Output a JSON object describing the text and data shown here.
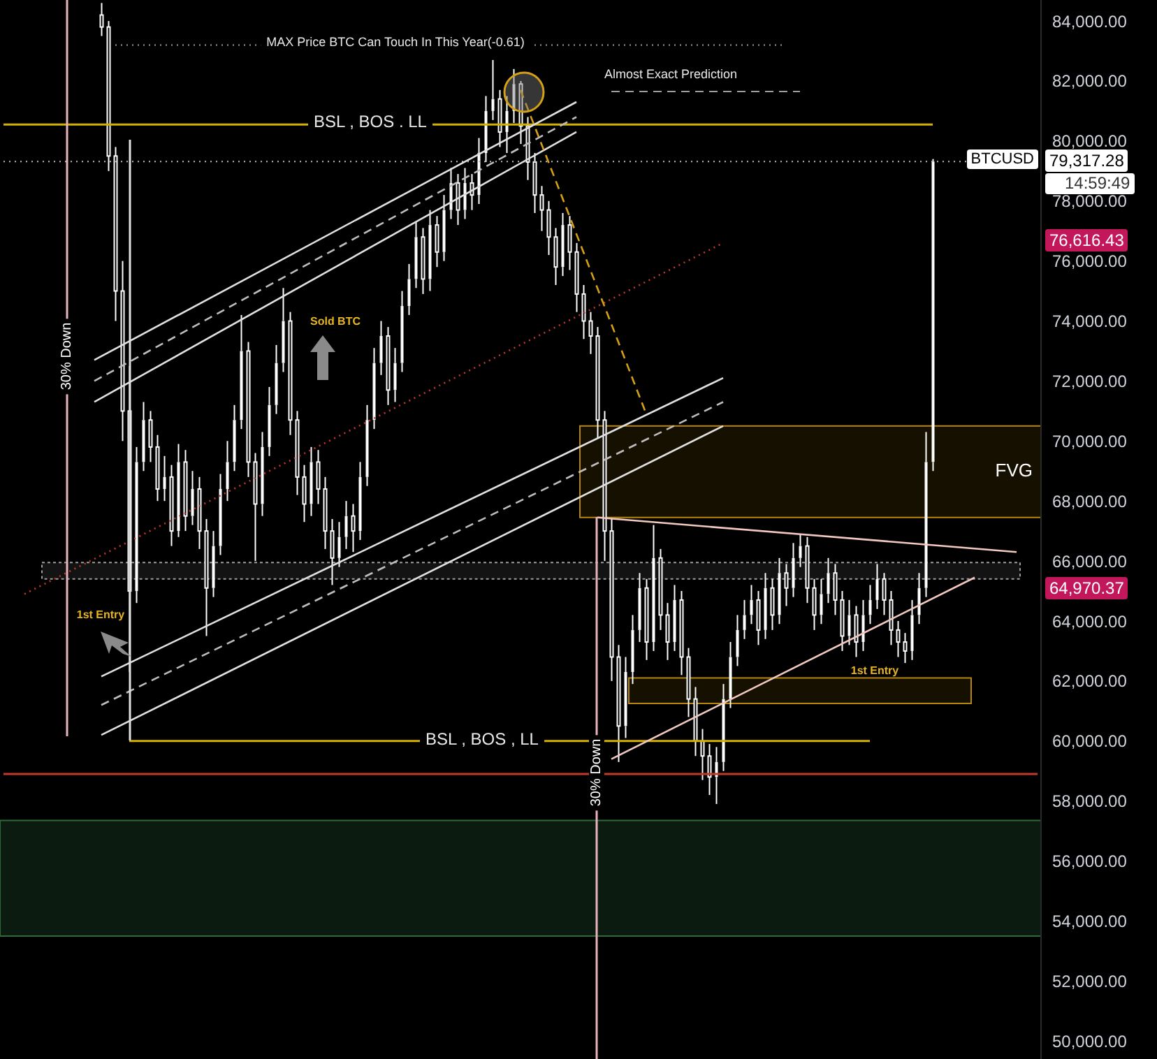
{
  "chart_data": {
    "type": "candlestick",
    "color": "#ffffff",
    "categories": [
      null,
      null,
      null,
      null,
      null,
      null,
      null,
      null,
      null,
      null,
      null,
      null,
      null,
      null,
      null,
      null,
      null,
      null,
      null,
      null,
      null,
      null,
      null,
      null,
      null,
      null,
      null,
      null,
      null,
      null,
      null,
      null,
      null,
      null,
      null,
      null,
      null,
      null,
      null,
      null,
      null,
      null,
      null,
      null,
      null,
      null,
      null,
      null,
      null,
      null,
      null,
      null,
      null,
      null,
      null,
      null,
      null,
      null,
      null,
      null,
      null,
      null,
      null,
      null,
      null,
      null,
      null,
      null,
      null,
      null,
      null,
      null,
      null,
      null,
      null,
      null,
      null,
      null,
      null,
      null,
      null,
      null,
      null,
      null,
      null,
      null,
      null,
      null,
      null,
      null,
      null,
      null,
      null,
      null,
      null,
      null,
      null,
      null,
      null,
      null,
      null,
      null,
      null,
      null,
      null,
      null,
      null,
      null,
      null,
      null,
      null,
      null,
      null,
      null,
      null,
      null,
      null,
      null,
      null,
      null,
      null,
      null,
      null,
      null,
      null,
      null,
      null,
      null,
      null,
      null,
      null,
      null,
      null,
      null,
      null,
      null,
      null,
      null,
      null,
      null,
      null,
      null,
      null,
      null,
      null,
      null,
      null,
      null,
      null
    ],
    "ohlc": [
      null,
      null,
      null,
      null,
      null,
      null,
      null,
      null,
      null,
      null,
      null,
      null,
      null,
      null,
      [
        84200,
        84600,
        83500,
        83800
      ],
      [
        83800,
        84000,
        79000,
        79500
      ],
      [
        79500,
        79800,
        74000,
        75000
      ],
      [
        75000,
        76000,
        70000,
        71000
      ],
      [
        71000,
        72500,
        62300,
        65000
      ],
      [
        65000,
        69800,
        64600,
        69300
      ],
      [
        69300,
        71300,
        69000,
        70700
      ],
      [
        70700,
        71000,
        69300,
        69800
      ],
      [
        69800,
        70200,
        68000,
        68400
      ],
      [
        68400,
        69500,
        68000,
        68800
      ],
      [
        68800,
        69200,
        66500,
        67000
      ],
      [
        67000,
        69900,
        66800,
        69300
      ],
      [
        69300,
        69700,
        67000,
        67500
      ],
      [
        67500,
        69000,
        67200,
        68400
      ],
      [
        68400,
        68800,
        66400,
        67000
      ],
      [
        67000,
        67400,
        63500,
        65100
      ],
      [
        65100,
        67000,
        64800,
        66500
      ],
      [
        66500,
        68900,
        66200,
        68400
      ],
      [
        68400,
        70000,
        68000,
        69300
      ],
      [
        69300,
        71200,
        69000,
        70700
      ],
      [
        70700,
        74200,
        70400,
        73000
      ],
      [
        73000,
        73300,
        68800,
        69300
      ],
      [
        69300,
        69600,
        66000,
        67900
      ],
      [
        67900,
        70300,
        67500,
        69800
      ],
      [
        69800,
        71800,
        69500,
        71200
      ],
      [
        71200,
        73200,
        70900,
        72600
      ],
      [
        72600,
        75100,
        72300,
        74000
      ],
      [
        74000,
        74300,
        70200,
        70700
      ],
      [
        70700,
        71000,
        68200,
        68800
      ],
      [
        68800,
        69200,
        67300,
        67900
      ],
      [
        67900,
        69800,
        67500,
        69300
      ],
      [
        69300,
        69700,
        67900,
        68400
      ],
      [
        68400,
        68800,
        66400,
        67000
      ],
      [
        67000,
        67400,
        65200,
        66100
      ],
      [
        66100,
        67300,
        65800,
        66800
      ],
      [
        66800,
        68000,
        66400,
        67500
      ],
      [
        67500,
        67900,
        66300,
        67000
      ],
      [
        67000,
        69300,
        66700,
        68800
      ],
      [
        68800,
        71200,
        68500,
        70700
      ],
      [
        70700,
        73100,
        70400,
        72600
      ],
      [
        72600,
        74000,
        72200,
        73500
      ],
      [
        73500,
        73800,
        71200,
        71700
      ],
      [
        71700,
        73100,
        71300,
        72600
      ],
      [
        72600,
        75000,
        72300,
        74500
      ],
      [
        74500,
        75900,
        74200,
        75400
      ],
      [
        75400,
        77300,
        75100,
        76800
      ],
      [
        76800,
        77100,
        74900,
        75400
      ],
      [
        75400,
        77700,
        75000,
        77200
      ],
      [
        77200,
        77500,
        75800,
        76300
      ],
      [
        76300,
        78200,
        76000,
        77700
      ],
      [
        77700,
        79100,
        77400,
        78600
      ],
      [
        78600,
        78900,
        77200,
        77700
      ],
      [
        77700,
        79100,
        77400,
        78600
      ],
      [
        78600,
        78900,
        77700,
        78200
      ],
      [
        78200,
        80100,
        77900,
        79600
      ],
      [
        79600,
        81500,
        79300,
        81000
      ],
      [
        81000,
        82700,
        80700,
        81400
      ],
      [
        81400,
        81700,
        79800,
        80300
      ],
      [
        80300,
        81500,
        79600,
        81000
      ],
      [
        81000,
        82400,
        80600,
        81900
      ],
      [
        81900,
        82000,
        79900,
        80500
      ],
      [
        80500,
        80800,
        78700,
        79300
      ],
      [
        79300,
        79600,
        77600,
        78200
      ],
      [
        78200,
        78500,
        77000,
        77700
      ],
      [
        77700,
        78000,
        76200,
        76800
      ],
      [
        76800,
        77100,
        75200,
        75800
      ],
      [
        75800,
        77600,
        75500,
        77200
      ],
      [
        77200,
        77500,
        75700,
        76300
      ],
      [
        76300,
        76600,
        74300,
        74900
      ],
      [
        74900,
        75200,
        73400,
        74000
      ],
      [
        74000,
        74300,
        72900,
        73500
      ],
      [
        73500,
        73800,
        70100,
        70700
      ],
      [
        70700,
        71000,
        66000,
        67000
      ],
      [
        67000,
        67400,
        62000,
        62800
      ],
      [
        62800,
        63200,
        59300,
        60500
      ],
      [
        60500,
        62800,
        60100,
        62300
      ],
      [
        62300,
        64200,
        61900,
        63700
      ],
      [
        63700,
        65600,
        63300,
        65100
      ],
      [
        65100,
        65400,
        62700,
        63300
      ],
      [
        63300,
        67200,
        63000,
        66100
      ],
      [
        66100,
        66400,
        63700,
        64200
      ],
      [
        64200,
        64600,
        62700,
        63300
      ],
      [
        63300,
        65200,
        63000,
        64700
      ],
      [
        64700,
        65000,
        62200,
        62800
      ],
      [
        62800,
        63100,
        60800,
        61400
      ],
      [
        61400,
        61800,
        59500,
        60000
      ],
      [
        60000,
        60400,
        58700,
        59500
      ],
      [
        59500,
        59900,
        58200,
        58800
      ],
      [
        58800,
        59800,
        57900,
        59300
      ],
      [
        59300,
        61900,
        59000,
        61400
      ],
      [
        61400,
        63300,
        61100,
        62800
      ],
      [
        62800,
        64200,
        62500,
        63700
      ],
      [
        63700,
        64700,
        63400,
        64200
      ],
      [
        64200,
        65200,
        63900,
        64700
      ],
      [
        64700,
        65000,
        63200,
        63700
      ],
      [
        63700,
        65600,
        63400,
        65100
      ],
      [
        65100,
        65400,
        63700,
        64200
      ],
      [
        64200,
        66100,
        63900,
        65600
      ],
      [
        65600,
        65900,
        64500,
        65100
      ],
      [
        65100,
        66600,
        64800,
        66100
      ],
      [
        66100,
        66900,
        65800,
        66500
      ],
      [
        66500,
        66800,
        64600,
        65100
      ],
      [
        65100,
        65400,
        63700,
        64200
      ],
      [
        64200,
        65400,
        63900,
        64900
      ],
      [
        64900,
        66100,
        64600,
        65600
      ],
      [
        65600,
        65900,
        64200,
        64700
      ],
      [
        64700,
        65000,
        63000,
        63500
      ],
      [
        63500,
        64700,
        63200,
        64200
      ],
      [
        64200,
        64500,
        62800,
        63300
      ],
      [
        63300,
        64700,
        63000,
        64200
      ],
      [
        64200,
        65200,
        63900,
        64700
      ],
      [
        64700,
        65900,
        64400,
        65400
      ],
      [
        65400,
        65600,
        64200,
        64700
      ],
      [
        64700,
        65000,
        63200,
        63700
      ],
      [
        63700,
        64000,
        62800,
        63300
      ],
      [
        63300,
        63600,
        62600,
        63000
      ],
      [
        63000,
        64700,
        62700,
        64200
      ],
      [
        64200,
        65600,
        63900,
        65100
      ],
      [
        65100,
        70300,
        64800,
        69300
      ],
      [
        69300,
        79400,
        69000,
        79317.28
      ],
      null,
      null,
      null,
      null,
      null,
      null,
      null,
      null,
      null,
      null,
      null,
      null,
      null,
      null,
      null
    ],
    "series": [
      {
        "type": "line",
        "color": "#e0e0e0",
        "line_style": "solid",
        "values": [
          null,
          null,
          null,
          null,
          null,
          null,
          null,
          null,
          null,
          null,
          null,
          null,
          null,
          72700,
          null,
          null,
          null,
          null,
          null,
          null,
          null,
          null,
          null,
          null,
          null,
          null,
          null,
          null,
          null,
          null,
          null,
          null,
          null,
          null,
          null,
          null,
          null,
          null,
          null,
          null,
          null,
          null,
          null,
          null,
          null,
          null,
          null,
          null,
          null,
          null,
          null,
          null,
          null,
          null,
          null,
          null,
          null,
          null,
          null,
          null,
          null,
          null,
          null,
          null,
          null,
          null,
          null,
          null,
          null,
          null,
          null,
          null,
          null,
          null,
          null,
          null,
          null,
          null,
          null,
          null,
          null,
          null,
          81300,
          null,
          null,
          null,
          null,
          null,
          null,
          null,
          null,
          null,
          null,
          null,
          null,
          null,
          null,
          null,
          null,
          null,
          null,
          null,
          null,
          null,
          null,
          null,
          null,
          null,
          null,
          null,
          null,
          null,
          null,
          null,
          null,
          null,
          null,
          null,
          null,
          null,
          null,
          null,
          null,
          null,
          null,
          null,
          null,
          null,
          null,
          null,
          null,
          null,
          null,
          null,
          null,
          null,
          null,
          null,
          null,
          null,
          null,
          null,
          null,
          null,
          null,
          null,
          null,
          null,
          null
        ]
      },
      {
        "type": "line",
        "color": "#bdbdbd",
        "line_style": "dashed",
        "values": [
          null,
          null,
          null,
          null,
          null,
          null,
          null,
          null,
          null,
          null,
          null,
          null,
          null,
          72000,
          null,
          null,
          null,
          null,
          null,
          null,
          null,
          null,
          null,
          null,
          null,
          null,
          null,
          null,
          null,
          null,
          null,
          null,
          null,
          null,
          null,
          null,
          null,
          null,
          null,
          null,
          null,
          null,
          null,
          null,
          null,
          null,
          null,
          null,
          null,
          null,
          null,
          null,
          null,
          null,
          null,
          null,
          null,
          null,
          null,
          null,
          null,
          null,
          null,
          null,
          null,
          null,
          null,
          null,
          null,
          null,
          null,
          null,
          null,
          null,
          null,
          null,
          null,
          null,
          null,
          null,
          null,
          null,
          80800,
          null,
          null,
          null,
          null,
          null,
          null,
          null,
          null,
          null,
          null,
          null,
          null,
          null,
          null,
          null,
          null,
          null,
          null,
          null,
          null,
          null,
          null,
          null,
          null,
          null,
          null,
          null,
          null,
          null,
          null,
          null,
          null,
          null,
          null,
          null,
          null,
          null,
          null,
          null,
          null,
          null,
          null,
          null,
          null,
          null,
          null,
          null,
          null,
          null,
          null,
          null,
          null,
          null,
          null,
          null,
          null,
          null,
          null,
          null,
          null,
          null,
          null,
          null,
          null,
          null,
          null
        ]
      },
      {
        "type": "line",
        "color": "#e0e0e0",
        "line_style": "solid",
        "values": [
          null,
          null,
          null,
          null,
          null,
          null,
          null,
          null,
          null,
          null,
          null,
          null,
          null,
          71300,
          null,
          null,
          null,
          null,
          null,
          null,
          null,
          null,
          null,
          null,
          null,
          null,
          null,
          null,
          null,
          null,
          null,
          null,
          null,
          null,
          null,
          null,
          null,
          null,
          null,
          null,
          null,
          null,
          null,
          null,
          null,
          null,
          null,
          null,
          null,
          null,
          null,
          null,
          null,
          null,
          null,
          null,
          null,
          null,
          null,
          null,
          null,
          null,
          null,
          null,
          null,
          null,
          null,
          null,
          null,
          null,
          null,
          null,
          null,
          null,
          null,
          null,
          null,
          null,
          null,
          null,
          null,
          null,
          80300,
          null,
          null,
          null,
          null,
          null,
          null,
          null,
          null,
          null,
          null,
          null,
          null,
          null,
          null,
          null,
          null,
          null,
          null,
          null,
          null,
          null,
          null,
          null,
          null,
          null,
          null,
          null,
          null,
          null,
          null,
          null,
          null,
          null,
          null,
          null,
          null,
          null,
          null,
          null,
          null,
          null,
          null,
          null,
          null,
          null,
          null,
          null,
          null,
          null,
          null,
          null,
          null,
          null,
          null,
          null,
          null,
          null,
          null,
          null,
          null,
          null,
          null,
          null,
          null,
          null,
          null
        ]
      },
      {
        "type": "line",
        "color": "#e0e0e0",
        "line_style": "solid",
        "values": [
          null,
          null,
          null,
          null,
          null,
          null,
          null,
          null,
          null,
          null,
          null,
          null,
          null,
          null,
          62150,
          null,
          null,
          null,
          null,
          null,
          null,
          null,
          null,
          null,
          null,
          null,
          null,
          null,
          null,
          null,
          null,
          null,
          null,
          null,
          null,
          null,
          null,
          null,
          null,
          null,
          null,
          null,
          null,
          null,
          null,
          null,
          null,
          null,
          null,
          null,
          null,
          null,
          null,
          null,
          null,
          null,
          null,
          null,
          null,
          null,
          null,
          null,
          null,
          null,
          null,
          null,
          null,
          null,
          null,
          null,
          null,
          null,
          null,
          null,
          null,
          null,
          null,
          null,
          null,
          null,
          null,
          null,
          null,
          null,
          null,
          null,
          null,
          null,
          null,
          null,
          null,
          null,
          null,
          null,
          null,
          null,
          null,
          null,
          null,
          null,
          null,
          null,
          null,
          72100,
          null,
          null,
          null,
          null,
          null,
          null,
          null,
          null,
          null,
          null,
          null,
          null,
          null,
          null,
          null,
          null,
          null,
          null,
          null,
          null,
          null,
          null,
          null,
          null,
          null,
          null,
          null,
          null,
          null,
          null,
          null,
          null,
          null,
          null,
          null,
          null,
          null,
          null,
          null,
          null,
          null,
          null,
          null,
          null,
          null
        ]
      },
      {
        "type": "line",
        "color": "#bdbdbd",
        "line_style": "dashed",
        "values": [
          null,
          null,
          null,
          null,
          null,
          null,
          null,
          null,
          null,
          null,
          null,
          null,
          null,
          null,
          61200,
          null,
          null,
          null,
          null,
          null,
          null,
          null,
          null,
          null,
          null,
          null,
          null,
          null,
          null,
          null,
          null,
          null,
          null,
          null,
          null,
          null,
          null,
          null,
          null,
          null,
          null,
          null,
          null,
          null,
          null,
          null,
          null,
          null,
          null,
          null,
          null,
          null,
          null,
          null,
          null,
          null,
          null,
          null,
          null,
          null,
          null,
          null,
          null,
          null,
          null,
          null,
          null,
          null,
          null,
          null,
          null,
          null,
          null,
          null,
          null,
          null,
          null,
          null,
          null,
          null,
          null,
          null,
          null,
          null,
          null,
          null,
          null,
          null,
          null,
          null,
          null,
          null,
          null,
          null,
          null,
          null,
          null,
          null,
          null,
          null,
          null,
          null,
          null,
          71300,
          null,
          null,
          null,
          null,
          null,
          null,
          null,
          null,
          null,
          null,
          null,
          null,
          null,
          null,
          null,
          null,
          null,
          null,
          null,
          null,
          null,
          null,
          null,
          null,
          null,
          null,
          null,
          null,
          null,
          null,
          null,
          null,
          null,
          null,
          null,
          null,
          null,
          null,
          null,
          null,
          null,
          null,
          null,
          null,
          null
        ]
      },
      {
        "type": "line",
        "color": "#e0e0e0",
        "line_style": "solid",
        "values": [
          null,
          null,
          null,
          null,
          null,
          null,
          null,
          null,
          null,
          null,
          null,
          null,
          null,
          null,
          60200,
          null,
          null,
          null,
          null,
          null,
          null,
          null,
          null,
          null,
          null,
          null,
          null,
          null,
          null,
          null,
          null,
          null,
          null,
          null,
          null,
          null,
          null,
          null,
          null,
          null,
          null,
          null,
          null,
          null,
          null,
          null,
          null,
          null,
          null,
          null,
          null,
          null,
          null,
          null,
          null,
          null,
          null,
          null,
          null,
          null,
          null,
          null,
          null,
          null,
          null,
          null,
          null,
          null,
          null,
          null,
          null,
          null,
          null,
          null,
          null,
          null,
          null,
          null,
          null,
          null,
          null,
          null,
          null,
          null,
          null,
          null,
          null,
          null,
          null,
          null,
          null,
          null,
          null,
          null,
          null,
          null,
          null,
          null,
          null,
          null,
          null,
          null,
          null,
          70500,
          null,
          null,
          null,
          null,
          null,
          null,
          null,
          null,
          null,
          null,
          null,
          null,
          null,
          null,
          null,
          null,
          null,
          null,
          null,
          null,
          null,
          null,
          null,
          null,
          null,
          null,
          null,
          null,
          null,
          null,
          null,
          null,
          null,
          null,
          null,
          null,
          null,
          null,
          null,
          null,
          null,
          null,
          null,
          null,
          null
        ]
      },
      {
        "type": "line",
        "color": "#c0392b",
        "line_style": "dotted",
        "values": [
          null,
          null,
          null,
          64900,
          null,
          null,
          null,
          null,
          null,
          null,
          null,
          null,
          null,
          null,
          null,
          null,
          null,
          null,
          null,
          null,
          null,
          null,
          null,
          null,
          null,
          null,
          null,
          null,
          null,
          null,
          null,
          null,
          null,
          null,
          null,
          null,
          null,
          null,
          null,
          null,
          null,
          null,
          null,
          null,
          null,
          null,
          null,
          null,
          null,
          null,
          null,
          null,
          null,
          null,
          null,
          null,
          null,
          null,
          null,
          null,
          null,
          null,
          null,
          null,
          null,
          null,
          null,
          null,
          null,
          null,
          null,
          null,
          null,
          null,
          null,
          null,
          null,
          null,
          null,
          null,
          null,
          null,
          null,
          null,
          null,
          null,
          null,
          null,
          null,
          null,
          null,
          null,
          null,
          null,
          null,
          null,
          null,
          null,
          null,
          null,
          null,
          null,
          null,
          76600,
          null,
          null,
          null,
          null,
          null,
          null,
          null,
          null,
          null,
          null,
          null,
          null,
          null,
          null,
          null,
          null,
          null,
          null,
          null,
          null,
          null,
          null,
          null,
          null,
          null,
          null,
          null,
          null,
          null,
          null,
          null,
          null,
          null,
          null,
          null,
          null,
          null,
          null,
          null,
          null,
          null,
          null,
          null,
          null,
          null
        ]
      },
      {
        "type": "line",
        "color": "#d4a017",
        "line_style": "dashed",
        "values": [
          null,
          null,
          null,
          null,
          null,
          null,
          null,
          null,
          null,
          null,
          null,
          null,
          null,
          null,
          null,
          null,
          null,
          null,
          null,
          null,
          null,
          null,
          null,
          null,
          null,
          null,
          null,
          null,
          null,
          null,
          null,
          null,
          null,
          null,
          null,
          null,
          null,
          null,
          null,
          null,
          null,
          null,
          null,
          null,
          null,
          null,
          null,
          null,
          null,
          null,
          null,
          null,
          null,
          null,
          null,
          null,
          null,
          null,
          null,
          null,
          null,
          null,
          null,
          null,
          null,
          null,
          null,
          null,
          null,
          null,
          null,
          null,
          null,
          null,
          81700,
          null,
          null,
          null,
          null,
          null,
          null,
          null,
          null,
          null,
          null,
          null,
          null,
          null,
          null,
          null,
          null,
          null,
          70900,
          null,
          null,
          null,
          null,
          null,
          null,
          null,
          null,
          null,
          null,
          null,
          null,
          null,
          null,
          null,
          null,
          null,
          null,
          null,
          null,
          null,
          null,
          null,
          null,
          null,
          null,
          null,
          null,
          null,
          null,
          null,
          null,
          null,
          null,
          null,
          null,
          null,
          null,
          null,
          null,
          null,
          null,
          null,
          null,
          null,
          null,
          null,
          null,
          null,
          null,
          null,
          null,
          null,
          null,
          null,
          null
        ]
      },
      {
        "type": "line",
        "color": "#f2c9c0",
        "line_style": "solid",
        "values": [
          null,
          null,
          null,
          null,
          null,
          null,
          null,
          null,
          null,
          null,
          null,
          null,
          null,
          null,
          null,
          null,
          null,
          null,
          null,
          null,
          null,
          null,
          null,
          null,
          null,
          null,
          null,
          null,
          null,
          null,
          null,
          null,
          null,
          null,
          null,
          null,
          null,
          null,
          null,
          null,
          null,
          null,
          null,
          null,
          null,
          null,
          null,
          null,
          null,
          null,
          null,
          null,
          null,
          null,
          null,
          null,
          null,
          null,
          null,
          null,
          null,
          null,
          null,
          null,
          null,
          null,
          null,
          null,
          null,
          null,
          null,
          null,
          null,
          null,
          null,
          null,
          null,
          null,
          null,
          null,
          null,
          null,
          null,
          null,
          null,
          67450,
          null,
          null,
          null,
          null,
          null,
          null,
          null,
          null,
          null,
          null,
          null,
          null,
          null,
          null,
          null,
          null,
          null,
          null,
          null,
          null,
          null,
          null,
          null,
          null,
          null,
          null,
          null,
          null,
          null,
          null,
          null,
          null,
          null,
          null,
          null,
          null,
          null,
          null,
          null,
          null,
          null,
          null,
          null,
          null,
          null,
          null,
          null,
          null,
          null,
          null,
          null,
          null,
          null,
          null,
          null,
          null,
          null,
          null,
          null,
          66300,
          null,
          null,
          null
        ]
      },
      {
        "type": "line",
        "color": "#f2c9c0",
        "line_style": "solid",
        "values": [
          null,
          null,
          null,
          null,
          null,
          null,
          null,
          null,
          null,
          null,
          null,
          null,
          null,
          null,
          null,
          null,
          null,
          null,
          null,
          null,
          null,
          null,
          null,
          null,
          null,
          null,
          null,
          null,
          null,
          null,
          null,
          null,
          null,
          null,
          null,
          null,
          null,
          null,
          null,
          null,
          null,
          null,
          null,
          null,
          null,
          null,
          null,
          null,
          null,
          null,
          null,
          null,
          null,
          null,
          null,
          null,
          null,
          null,
          null,
          null,
          null,
          null,
          null,
          null,
          null,
          null,
          null,
          null,
          null,
          null,
          null,
          null,
          null,
          null,
          null,
          null,
          null,
          null,
          null,
          null,
          null,
          null,
          null,
          null,
          null,
          null,
          null,
          59400,
          null,
          null,
          null,
          null,
          null,
          null,
          null,
          null,
          null,
          null,
          null,
          null,
          null,
          null,
          null,
          null,
          null,
          null,
          null,
          null,
          null,
          null,
          null,
          null,
          null,
          null,
          null,
          null,
          null,
          null,
          null,
          null,
          null,
          null,
          null,
          null,
          null,
          null,
          null,
          null,
          null,
          null,
          null,
          null,
          null,
          null,
          null,
          null,
          null,
          null,
          null,
          65450,
          null,
          null,
          null,
          null,
          null,
          null,
          null,
          null,
          null
        ]
      }
    ],
    "ylim": [
      49400,
      84700
    ],
    "yticks": [
      {
        "value": 50000,
        "label": "50,000.00"
      },
      {
        "value": 52000,
        "label": "52,000.00"
      },
      {
        "value": 54000,
        "label": "54,000.00"
      },
      {
        "value": 56000,
        "label": "56,000.00"
      },
      {
        "value": 58000,
        "label": "58,000.00"
      },
      {
        "value": 60000,
        "label": "60,000.00"
      },
      {
        "value": 62000,
        "label": "62,000.00"
      },
      {
        "value": 64000,
        "label": "64,000.00"
      },
      {
        "value": 66000,
        "label": "66,000.00"
      },
      {
        "value": 68000,
        "label": "68,000.00"
      },
      {
        "value": 70000,
        "label": "70,000.00"
      },
      {
        "value": 72000,
        "label": "72,000.00"
      },
      {
        "value": 74000,
        "label": "74,000.00"
      },
      {
        "value": 76000,
        "label": "76,000.00"
      },
      {
        "value": 78000,
        "label": "78,000.00"
      },
      {
        "value": 80000,
        "label": "80,000.00"
      },
      {
        "value": 82000,
        "label": "82,000.00"
      },
      {
        "value": 84000,
        "label": "84,000.00"
      }
    ],
    "tick_labels": "y",
    "ref_lines": [
      {
        "axis": "y",
        "value": 83200,
        "label": "MAX Price BTC Can Touch In This Year(-0.61)",
        "color": "#9e9e9e",
        "line_style": "dotted"
      },
      {
        "axis": "y",
        "value": 81650,
        "label": "Almost Exact Prediction",
        "color": "#9e9e9e",
        "line_style": "dashed"
      },
      {
        "axis": "y",
        "value": 80550,
        "label": "BSL , BOS . LL",
        "color": "#d4b106",
        "line_style": "solid"
      },
      {
        "axis": "y",
        "value": 79317.28,
        "label": "BTCUSD",
        "color": "#bdbdbd",
        "line_style": "dotted"
      },
      {
        "axis": "y",
        "value": 60000,
        "label": "BSL , BOS , LL",
        "color": "#d4b106",
        "line_style": "solid"
      },
      {
        "axis": "y",
        "value": 58900,
        "color": "#c0392b",
        "line_style": "solid"
      }
    ],
    "bands": [
      {
        "axis": "y",
        "from": 67450,
        "to": 70500,
        "label": "FVG",
        "color": "#b8860b"
      },
      {
        "axis": "y",
        "from": 61250,
        "to": 62100,
        "color": "#b8860b"
      },
      {
        "axis": "y",
        "from": 65400,
        "to": 65950,
        "color": "#9e9e9e"
      },
      {
        "axis": "y",
        "from": 53500,
        "to": 57350,
        "color": "#2e6b3a"
      }
    ],
    "annotations": [
      "Sold BTC",
      "1st Entry",
      "1st Entry",
      "30% Down",
      "30% Down",
      "79,317.28",
      "14:59:49",
      "76,616.43",
      "64,970.37"
    ]
  }
}
